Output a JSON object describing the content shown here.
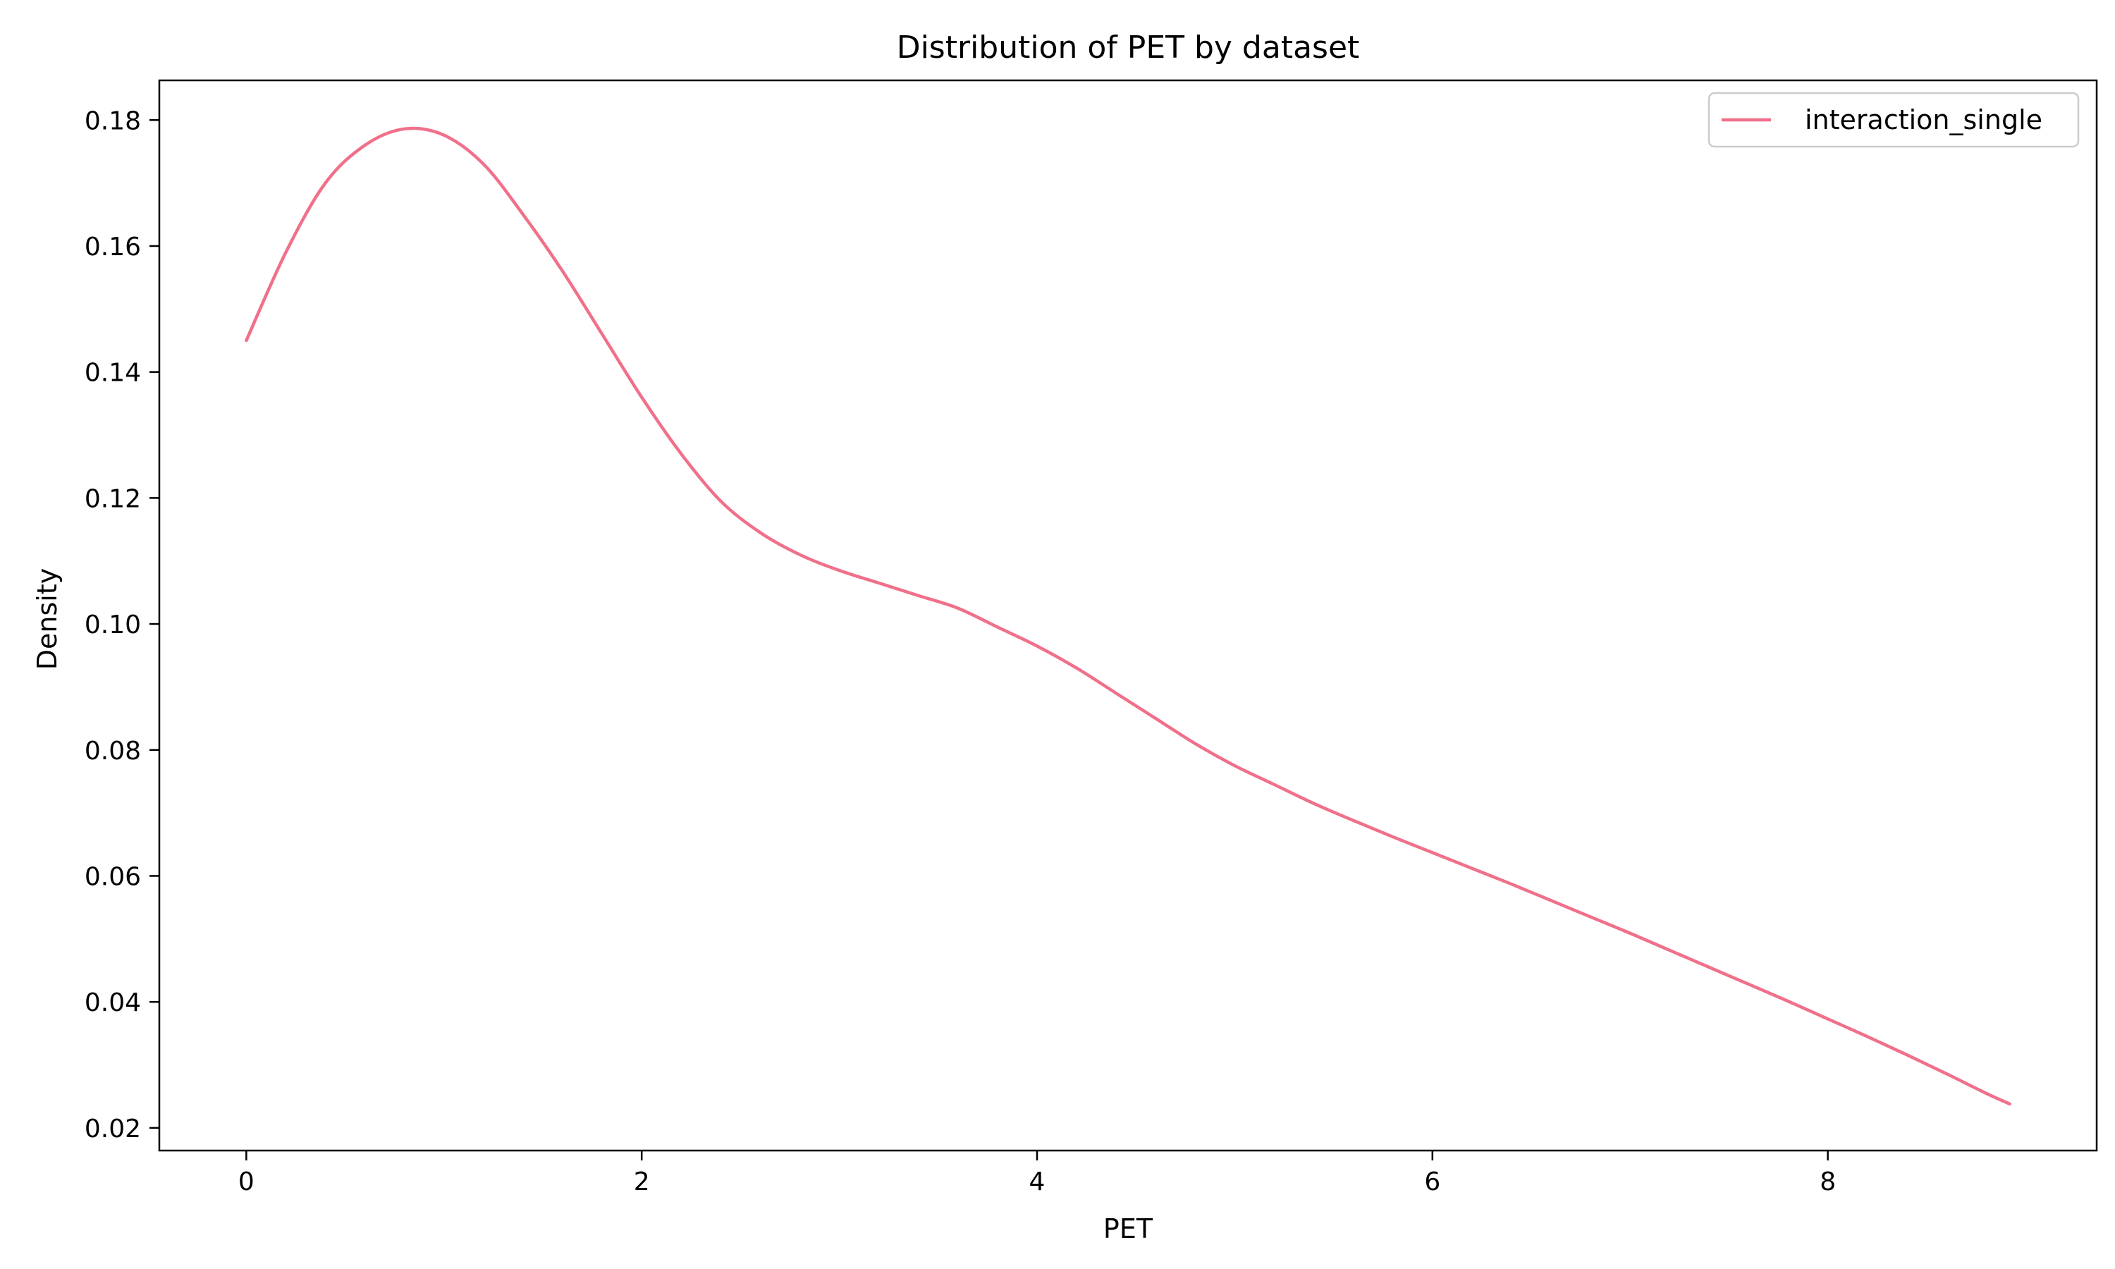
{
  "chart_data": {
    "type": "line",
    "title": "Distribution of PET by dataset",
    "xlabel": "PET",
    "ylabel": "Density",
    "xlim": [
      -0.44,
      9.36
    ],
    "ylim": [
      0.0164,
      0.1863
    ],
    "xticks": [
      0,
      2,
      4,
      6,
      8
    ],
    "yticks": [
      0.02,
      0.04,
      0.06,
      0.08,
      0.1,
      0.12,
      0.14,
      0.16,
      0.18
    ],
    "ytick_labels": [
      "0.02",
      "0.04",
      "0.06",
      "0.08",
      "0.10",
      "0.12",
      "0.14",
      "0.16",
      "0.18"
    ],
    "grid": false,
    "legend": {
      "position": "top-right"
    },
    "series": [
      {
        "name": "interaction_single",
        "color": "#f0708a",
        "x": [
          0,
          0.2,
          0.4,
          0.6,
          0.8,
          1.0,
          1.2,
          1.4,
          1.6,
          1.8,
          2.0,
          2.2,
          2.4,
          2.6,
          2.8,
          3.0,
          3.2,
          3.4,
          3.6,
          3.8,
          4.0,
          4.2,
          4.4,
          4.6,
          4.8,
          5.0,
          5.2,
          5.4,
          5.6,
          5.8,
          6.0,
          6.2,
          6.4,
          6.6,
          6.8,
          7.0,
          7.2,
          7.4,
          7.6,
          7.8,
          8.0,
          8.2,
          8.4,
          8.6,
          8.8,
          8.92
        ],
        "y": [
          0.145,
          0.159,
          0.17,
          0.176,
          0.1786,
          0.1776,
          0.173,
          0.165,
          0.156,
          0.146,
          0.136,
          0.127,
          0.1195,
          0.1145,
          0.111,
          0.1085,
          0.1065,
          0.1045,
          0.1025,
          0.0995,
          0.0965,
          0.093,
          0.089,
          0.085,
          0.081,
          0.0775,
          0.0745,
          0.0715,
          0.0688,
          0.0662,
          0.0637,
          0.0612,
          0.0587,
          0.0561,
          0.0535,
          0.0509,
          0.0482,
          0.0455,
          0.0428,
          0.0401,
          0.0373,
          0.0345,
          0.0316,
          0.0286,
          0.0255,
          0.0238
        ]
      }
    ]
  }
}
